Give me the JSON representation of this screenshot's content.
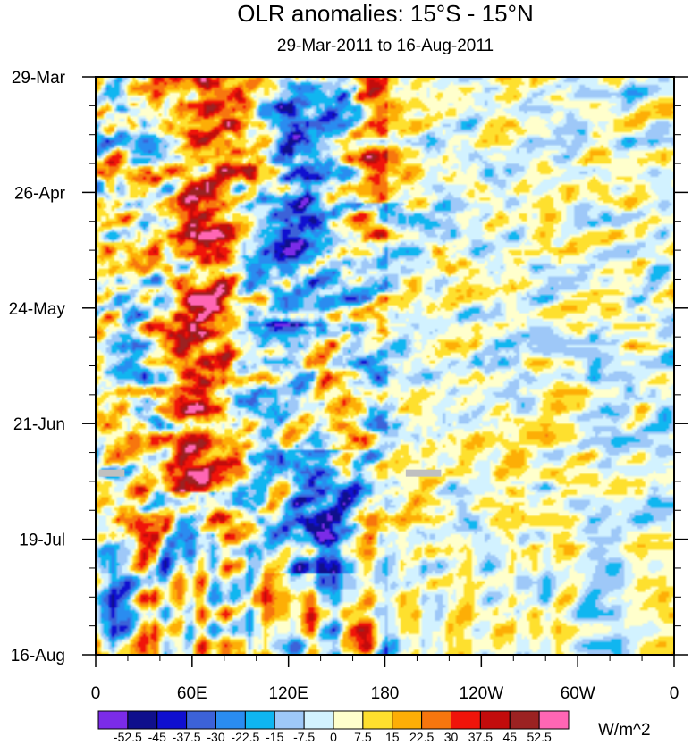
{
  "chart_data": {
    "type": "heatmap",
    "title": "OLR anomalies: 15°S - 15°N",
    "subtitle": "29-Mar-2011 to 16-Aug-2011",
    "x_tick_labels": [
      "0",
      "60E",
      "120E",
      "180",
      "120W",
      "60W",
      "0"
    ],
    "x_tick_lons": [
      0,
      60,
      120,
      180,
      240,
      300,
      360
    ],
    "x_range": [
      0,
      360
    ],
    "y_tick_labels": [
      "29-Mar",
      "26-Apr",
      "24-May",
      "21-Jun",
      "19-Jul",
      "16-Aug"
    ],
    "y_tick_days": [
      0,
      28,
      56,
      84,
      112,
      140
    ],
    "y_range_days": [
      0,
      140
    ],
    "units": "W/m^2",
    "colorbar": {
      "levels": [
        "-52.5",
        "-45",
        "-37.5",
        "-30",
        "-22.5",
        "-15",
        "-7.5",
        "0",
        "7.5",
        "15",
        "22.5",
        "30",
        "37.5",
        "45",
        "52.5"
      ],
      "colors": [
        "#7b2be8",
        "#10108c",
        "#1010d0",
        "#3c62d8",
        "#2a8cf0",
        "#10b6f0",
        "#9ec8f8",
        "#d2f2ff",
        "#ffffcc",
        "#fee02e",
        "#fdae06",
        "#f7760e",
        "#f0140a",
        "#c20c0c",
        "#9b2222",
        "#ff66b4"
      ]
    },
    "missing_data": [
      {
        "lon_range": [
          2,
          18
        ],
        "day": 96
      },
      {
        "lon_range": [
          193,
          215
        ],
        "day": 96
      }
    ],
    "features": [
      {
        "lon": 75,
        "day_range": [
          0,
          100
        ],
        "sign": "positive"
      },
      {
        "lon": 130,
        "day_range": [
          0,
          60
        ],
        "sign": "negative"
      },
      {
        "lon": 180,
        "day_range": [
          0,
          30
        ],
        "sign": "positive"
      },
      {
        "lon": 140,
        "day_range": [
          90,
          120
        ],
        "sign": "negative"
      }
    ]
  }
}
